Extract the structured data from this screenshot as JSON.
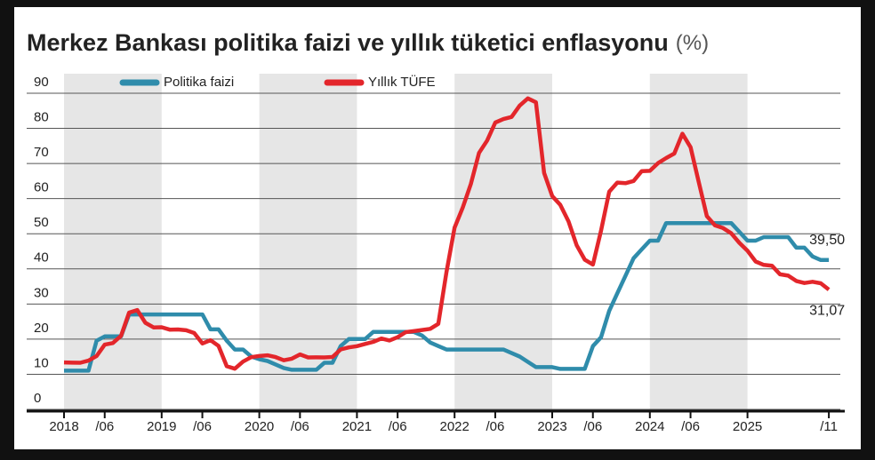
{
  "chart_data": {
    "type": "line",
    "title": "Merkez Bankası politika faizi ve yıllık tüketici enflasyonu",
    "title_unit": "(%)",
    "categories": [
      "2018",
      null,
      null,
      null,
      null,
      "/06",
      null,
      null,
      null,
      null,
      null,
      null,
      "2019",
      null,
      null,
      null,
      null,
      "/06",
      null,
      null,
      null,
      null,
      null,
      null,
      "2020",
      null,
      null,
      null,
      null,
      "/06",
      null,
      null,
      null,
      null,
      null,
      null,
      "2021",
      null,
      null,
      null,
      null,
      "/06",
      null,
      null,
      null,
      null,
      null,
      null,
      "2022",
      null,
      null,
      null,
      null,
      "/06",
      null,
      null,
      null,
      null,
      null,
      null,
      "2023",
      null,
      null,
      null,
      null,
      "/06",
      null,
      null,
      null,
      null,
      null,
      null,
      "2024",
      null,
      null,
      null,
      null,
      "/06",
      null,
      null,
      null,
      null,
      null,
      null,
      "2025",
      null,
      null,
      null,
      null,
      null,
      null,
      null,
      null,
      null,
      "/11"
    ],
    "series": [
      {
        "name": "Politika faizi",
        "color": "#2f8cab",
        "values": [
          8,
          8,
          8,
          8,
          16.5,
          17.75,
          17.75,
          17.75,
          24,
          24,
          24,
          24,
          24,
          24,
          24,
          24,
          24,
          24,
          19.75,
          19.75,
          16.5,
          14,
          14,
          12,
          11.25,
          10.75,
          9.75,
          8.75,
          8.25,
          8.25,
          8.25,
          8.25,
          10.25,
          10.25,
          15,
          17,
          17,
          17,
          19,
          19,
          19,
          19,
          19,
          19,
          18,
          16,
          15,
          14,
          14,
          14,
          14,
          14,
          14,
          14,
          14,
          13,
          12,
          10.5,
          9,
          9,
          9,
          8.5,
          8.5,
          8.5,
          8.5,
          15,
          17.5,
          25,
          30,
          35,
          40,
          42.5,
          45,
          45,
          50,
          50,
          50,
          50,
          50,
          50,
          50,
          50,
          50,
          47.5,
          45,
          45,
          46,
          46,
          46,
          46,
          43,
          43,
          40.5,
          39.5,
          39.5
        ],
        "value_labels": [
          null,
          null,
          null,
          null,
          null,
          null,
          null,
          null,
          null,
          null,
          null,
          null,
          null,
          null,
          null,
          null,
          null,
          null,
          null,
          null,
          null,
          null,
          null,
          null,
          null,
          null,
          null,
          null,
          null,
          null,
          null,
          null,
          null,
          null,
          null,
          null,
          null,
          null,
          null,
          null,
          null,
          null,
          null,
          null,
          null,
          null,
          null,
          null,
          null,
          null,
          null,
          null,
          null,
          null,
          null,
          null,
          null,
          null,
          null,
          null,
          null,
          null,
          null,
          null,
          null,
          null,
          null,
          null,
          null,
          null,
          null,
          null,
          null,
          null,
          null,
          null,
          null,
          null,
          null,
          null,
          null,
          null,
          null,
          null,
          null,
          null,
          null,
          null,
          null,
          null,
          null,
          null,
          null,
          null,
          "39,50"
        ]
      },
      {
        "name": "Yıllık TÜFE",
        "color": "#e3262b",
        "values": [
          10.35,
          10.26,
          10.23,
          10.85,
          12.15,
          15.39,
          15.85,
          17.9,
          24.52,
          25.24,
          21.62,
          20.3,
          20.35,
          19.67,
          19.71,
          19.5,
          18.71,
          15.72,
          16.65,
          15.01,
          9.26,
          8.55,
          10.56,
          11.84,
          12.15,
          12.37,
          11.86,
          10.94,
          11.39,
          12.62,
          11.76,
          11.77,
          11.75,
          11.89,
          14.03,
          14.6,
          14.97,
          15.61,
          16.19,
          17.14,
          16.59,
          17.53,
          18.95,
          19.25,
          19.58,
          19.89,
          21.31,
          36.08,
          48.69,
          54.44,
          61.14,
          69.97,
          73.5,
          78.62,
          79.6,
          80.21,
          83.45,
          85.51,
          84.39,
          64.27,
          57.68,
          55.18,
          50.51,
          43.68,
          39.59,
          38.21,
          47.83,
          58.94,
          61.53,
          61.36,
          61.98,
          64.77,
          64.86,
          67.07,
          68.5,
          69.8,
          75.45,
          71.6,
          61.78,
          51.97,
          49.38,
          48.58,
          47.09,
          44.38,
          42.12,
          39.05,
          38.1,
          37.86,
          35.41,
          35.05,
          33.52,
          32.95,
          33.29,
          32.87,
          31.07
        ],
        "value_labels": [
          null,
          null,
          null,
          null,
          null,
          null,
          null,
          null,
          null,
          null,
          null,
          null,
          null,
          null,
          null,
          null,
          null,
          null,
          null,
          null,
          null,
          null,
          null,
          null,
          null,
          null,
          null,
          null,
          null,
          null,
          null,
          null,
          null,
          null,
          null,
          null,
          null,
          null,
          null,
          null,
          null,
          null,
          null,
          null,
          null,
          null,
          null,
          null,
          null,
          null,
          null,
          null,
          null,
          null,
          null,
          null,
          null,
          null,
          null,
          null,
          null,
          null,
          null,
          null,
          null,
          null,
          null,
          null,
          null,
          null,
          null,
          null,
          null,
          null,
          null,
          null,
          null,
          null,
          null,
          null,
          null,
          null,
          null,
          null,
          null,
          null,
          null,
          null,
          null,
          null,
          null,
          null,
          null,
          null,
          "31,07"
        ]
      }
    ],
    "ylim": [
      0,
      90
    ],
    "yticks": [
      0,
      10,
      20,
      30,
      40,
      50,
      60,
      70,
      80,
      90
    ],
    "grid": true
  }
}
